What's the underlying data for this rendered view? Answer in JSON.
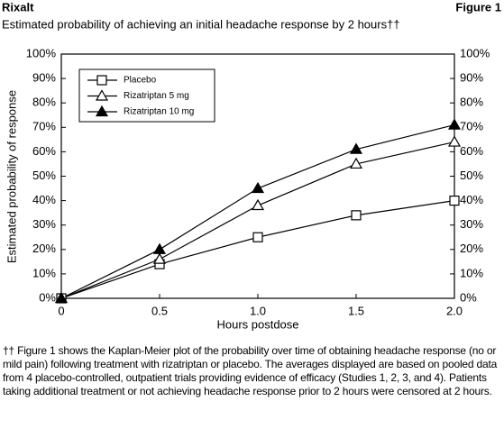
{
  "title": "Rixalt",
  "figure_label": "Figure 1",
  "footnote": "†† Figure 1 shows the Kaplan-Meier plot of the probability over time of obtaining headache response (no or mild pain) following treatment with rizatriptan or placebo. The averages displayed are based on pooled data from 4 placebo-controlled, outpatient trials providing evidence of efficacy (Studies 1, 2, 3, and 4). Patients taking additional treatment or not achieving headache response prior to 2 hours were censored at 2 hours.",
  "chart_data": {
    "type": "line",
    "subtitle": "Estimated probability of achieving an initial headache response by 2 hours††",
    "x_label": "Hours postdose",
    "y_label": "Estimated probability of response",
    "x": [
      0,
      0.5,
      1,
      1.5,
      2
    ],
    "series": [
      {
        "name": "Placebo",
        "color": "#000000",
        "marker": "square-open",
        "values": [
          0,
          14,
          25,
          34,
          40
        ]
      },
      {
        "name": "Rizatriptan 5 mg",
        "color": "#000000",
        "marker": "triangle-open",
        "values": [
          0,
          16,
          38,
          55,
          64
        ]
      },
      {
        "name": "Rizatriptan 10 mg",
        "color": "#000000",
        "marker": "triangle-filled",
        "values": [
          0,
          20,
          45,
          61,
          71
        ]
      }
    ],
    "xlim": [
      0,
      2
    ],
    "xticks": [
      0,
      0.5,
      {
        "value": 1,
        "label": "1.0"
      },
      {
        "value": 1.5,
        "label": "1.5"
      },
      {
        "value": 2,
        "label": "2.0"
      }
    ],
    "ylim": [
      0,
      100
    ],
    "yticks": [
      {
        "value": 0,
        "label": "0%"
      },
      {
        "value": 10,
        "label": "10%"
      },
      {
        "value": 20,
        "label": "20%"
      },
      {
        "value": 30,
        "label": "30%"
      },
      {
        "value": 40,
        "label": "40%"
      },
      {
        "value": 50,
        "label": "50%"
      },
      {
        "value": 60,
        "label": "60%"
      },
      {
        "value": 70,
        "label": "70%"
      },
      {
        "value": 80,
        "label": "80%"
      },
      {
        "value": 90,
        "label": "90%"
      },
      {
        "value": 100,
        "label": "100%"
      }
    ],
    "y2lim": [
      0,
      100
    ],
    "y2ticks": [
      {
        "value": 0,
        "label": "0%"
      },
      {
        "value": 10,
        "label": "10%"
      },
      {
        "value": 20,
        "label": "20%"
      },
      {
        "value": 30,
        "label": "30%"
      },
      {
        "value": 40,
        "label": "40%"
      },
      {
        "value": 50,
        "label": "50%"
      },
      {
        "value": 60,
        "label": "60%"
      },
      {
        "value": 70,
        "label": "70%"
      },
      {
        "value": 80,
        "label": "80%"
      },
      {
        "value": 90,
        "label": "90%"
      },
      {
        "value": 100,
        "label": "100%"
      }
    ],
    "grid": false,
    "legend": "top-left"
  }
}
